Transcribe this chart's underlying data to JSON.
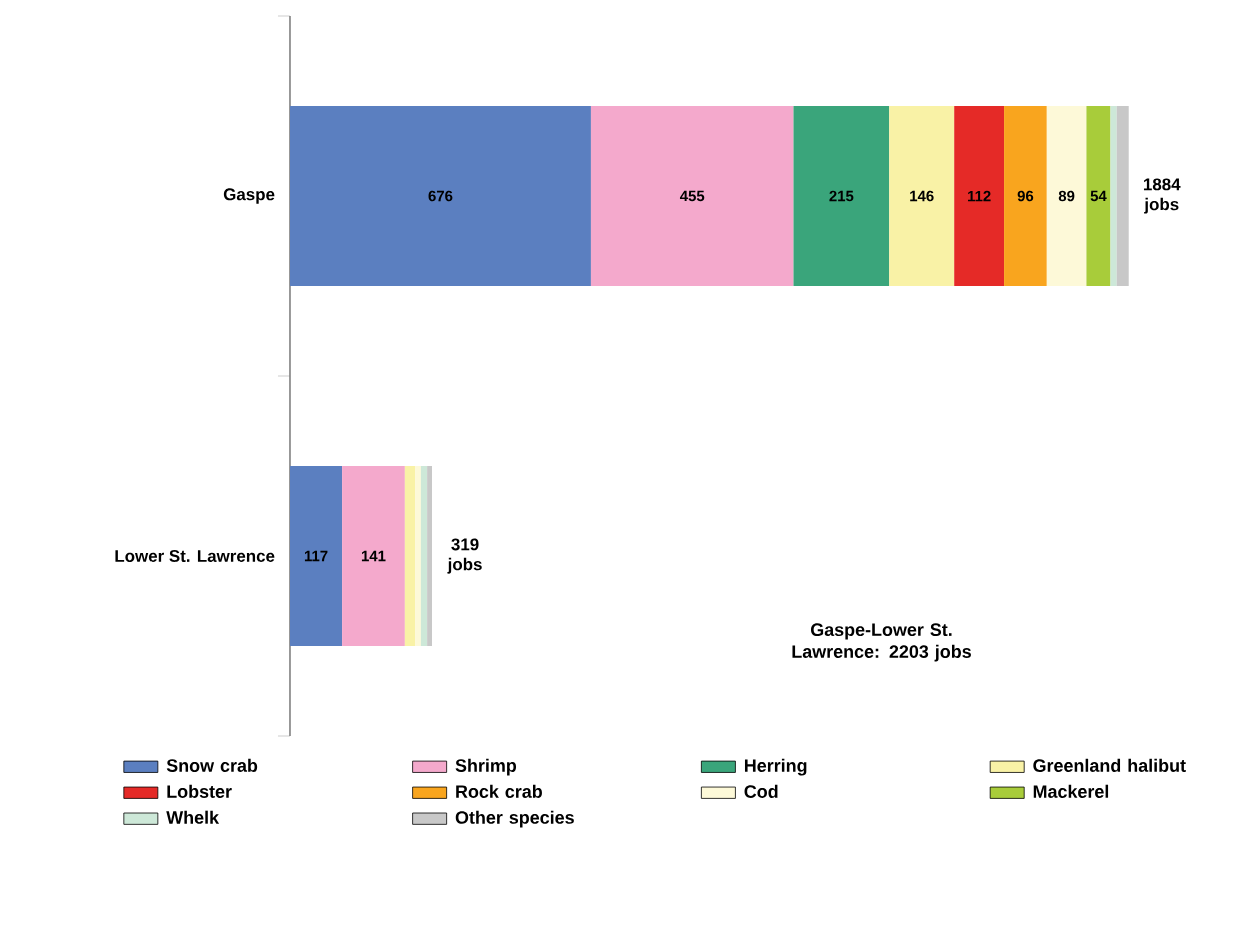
{
  "chart_data": {
    "type": "bar",
    "orientation": "horizontal",
    "stacked": true,
    "categories": [
      "Gaspe",
      "Lower St. Lawrence"
    ],
    "series": [
      {
        "name": "Snow crab",
        "color": "#5b7fc0",
        "values": [
          676,
          117
        ],
        "value_labels": [
          "676",
          "117"
        ]
      },
      {
        "name": "Shrimp",
        "color": "#f4a9cc",
        "values": [
          455,
          141
        ],
        "value_labels": [
          "455",
          "141"
        ]
      },
      {
        "name": "Herring",
        "color": "#3aa57b",
        "values": [
          215,
          null
        ],
        "value_labels": [
          "215",
          null
        ]
      },
      {
        "name": "Greenland halibut",
        "color": "#f9f2a6",
        "values": [
          146,
          23
        ],
        "value_labels": [
          "146",
          null
        ]
      },
      {
        "name": "Lobster",
        "color": "#e52a27",
        "values": [
          112,
          null
        ],
        "value_labels": [
          "112",
          null
        ]
      },
      {
        "name": "Rock crab",
        "color": "#f9a51e",
        "values": [
          96,
          null
        ],
        "value_labels": [
          "96",
          null
        ]
      },
      {
        "name": "Cod",
        "color": "#fdf9d8",
        "values": [
          89,
          13
        ],
        "value_labels": [
          "89",
          null
        ]
      },
      {
        "name": "Mackerel",
        "color": "#a8cc3a",
        "values": [
          54,
          null
        ],
        "value_labels": [
          "54",
          null
        ]
      },
      {
        "name": "Whelk",
        "color": "#cde8d8",
        "values": [
          14,
          14
        ],
        "value_labels": [
          null,
          null
        ]
      },
      {
        "name": "Other species",
        "color": "#c8c8c8",
        "values": [
          27,
          11
        ],
        "value_labels": [
          null,
          null
        ]
      }
    ],
    "totals": [
      "1884 jobs",
      "319 jobs"
    ],
    "annotations": [
      "Gaspe-Lower St. Lawrence: 2203 jobs"
    ],
    "legend": "bottom",
    "tick_labels": "y"
  }
}
